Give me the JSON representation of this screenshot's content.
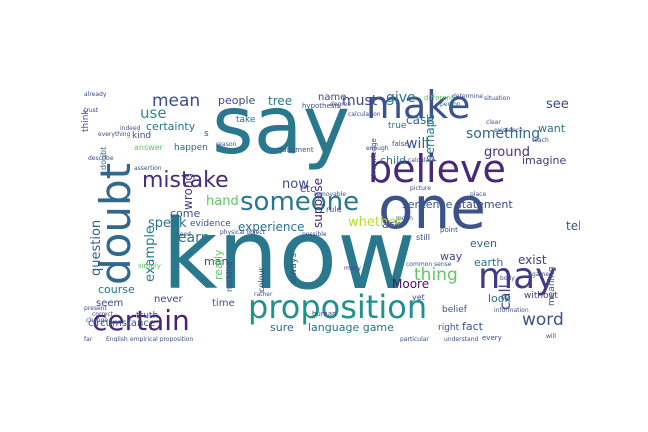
{
  "words": [
    {
      "t": "know",
      "c": "#2a788e"
    },
    {
      "t": "say",
      "c": "#2a788e"
    },
    {
      "t": "one",
      "c": "#3b528b"
    },
    {
      "t": "make",
      "c": "#3b528b"
    },
    {
      "t": "believe",
      "c": "#482878"
    },
    {
      "t": "doubt",
      "c": "#31688e"
    },
    {
      "t": "proposition",
      "c": "#21918c"
    },
    {
      "t": "may",
      "c": "#443983"
    },
    {
      "t": "certain",
      "c": "#482475"
    },
    {
      "t": "mistake",
      "c": "#472d7b"
    },
    {
      "t": "someone",
      "c": "#2a788e"
    },
    {
      "t": "something",
      "c": "#31688e"
    },
    {
      "t": "question",
      "c": "#355f8d"
    },
    {
      "t": "mean",
      "c": "#3e4a89"
    },
    {
      "t": "hand",
      "c": "#5ec962"
    },
    {
      "t": "now",
      "c": "#3e4989"
    },
    {
      "t": "word",
      "c": "#3b528b"
    },
    {
      "t": "example",
      "c": "#287d8e"
    },
    {
      "t": "thing",
      "c": "#5ec962"
    },
    {
      "t": "must",
      "c": "#414487"
    },
    {
      "t": "give",
      "c": "#2a788e"
    },
    {
      "t": "see",
      "c": "#3f4788"
    },
    {
      "t": "will",
      "c": "#3b528b"
    },
    {
      "t": "whether",
      "c": "#b5de2b"
    },
    {
      "t": "learn",
      "c": "#2a788e"
    },
    {
      "t": "experience",
      "c": "#2c728e"
    },
    {
      "t": "use",
      "c": "#21918c"
    },
    {
      "t": "wrong",
      "c": "#443a83"
    },
    {
      "t": "speak",
      "c": "#2c728e"
    },
    {
      "t": "call",
      "c": "#3e4989"
    },
    {
      "t": "case",
      "c": "#31688e"
    },
    {
      "t": "ground",
      "c": "#46327e"
    },
    {
      "t": "perhaps",
      "c": "#2a788e"
    },
    {
      "t": "certainty",
      "c": "#2c728e"
    },
    {
      "t": "people",
      "c": "#3f4788"
    },
    {
      "t": "tree",
      "c": "#287c8e"
    },
    {
      "t": "name",
      "c": "#3e4a89"
    },
    {
      "t": "suppose",
      "c": "#482576"
    },
    {
      "t": "come",
      "c": "#3b528b"
    },
    {
      "t": "course",
      "c": "#2c728e"
    },
    {
      "t": "man",
      "c": "#3e4989"
    },
    {
      "t": "really",
      "c": "#5ec962"
    },
    {
      "t": "ask",
      "c": "#3b528b"
    },
    {
      "t": "Moore",
      "c": "#471365"
    },
    {
      "t": "way",
      "c": "#3e4989"
    },
    {
      "t": "even",
      "c": "#31688e"
    },
    {
      "t": "exist",
      "c": "#443983"
    },
    {
      "t": "earth",
      "c": "#2c728e"
    },
    {
      "t": "tell",
      "c": "#3b528b"
    },
    {
      "t": "imagine",
      "c": "#46337e"
    },
    {
      "t": "sentence",
      "c": "#3b528b"
    },
    {
      "t": "statement",
      "c": "#3f4788"
    },
    {
      "t": "want",
      "c": "#2c728e"
    },
    {
      "t": "child",
      "c": "#2a788e"
    },
    {
      "t": "etc",
      "c": "#443983"
    },
    {
      "t": "look",
      "c": "#2c728e"
    },
    {
      "t": "fact",
      "c": "#3b528b"
    },
    {
      "t": "language game",
      "c": "#2c728e"
    },
    {
      "t": "sure",
      "c": "#31688e"
    },
    {
      "t": "time",
      "c": "#3b528b"
    },
    {
      "t": "never",
      "c": "#3e4a89"
    },
    {
      "t": "seem",
      "c": "#3f4788"
    },
    {
      "t": "circumstance",
      "c": "#3b528b"
    },
    {
      "t": "truth",
      "c": "#3e4989"
    },
    {
      "t": "belief",
      "c": "#3b528b"
    },
    {
      "t": "without",
      "c": "#443983"
    },
    {
      "t": "meaning",
      "c": "#3b528b"
    },
    {
      "t": "kind",
      "c": "#3e4a89"
    },
    {
      "t": "take",
      "c": "#2c728e"
    },
    {
      "t": "happen",
      "c": "#31688e"
    },
    {
      "t": "think",
      "c": "#3f4788"
    },
    {
      "t": "answer",
      "c": "#5ec962"
    },
    {
      "t": "evidence",
      "c": "#3b528b"
    },
    {
      "t": "colour",
      "c": "#3e4989"
    },
    {
      "t": "always",
      "c": "#3e4a89"
    },
    {
      "t": "nothing",
      "c": "#3e4a89"
    },
    {
      "t": "true",
      "c": "#2c728e"
    },
    {
      "t": "rule",
      "c": "#3b528b"
    },
    {
      "t": "right",
      "c": "#3b528b"
    },
    {
      "t": "doubt",
      "c": "#31688e"
    },
    {
      "t": "s",
      "c": "#3b528b"
    },
    {
      "t": "still",
      "c": "#3e4989"
    },
    {
      "t": "every",
      "c": "#3e4989"
    },
    {
      "t": "judgment",
      "c": "#3b528b"
    },
    {
      "t": "knowledge",
      "c": "#3e4a89"
    },
    {
      "t": "false",
      "c": "#3e4989"
    },
    {
      "t": "point",
      "c": "#3f4788"
    },
    {
      "t": "yet",
      "c": "#3e4a89"
    },
    {
      "t": "different",
      "c": "#5ec962"
    },
    {
      "t": "human",
      "c": "#3e4989"
    },
    {
      "t": "hypothesis",
      "c": "#3b528b"
    },
    {
      "t": "physical object",
      "c": "#3e4a89"
    },
    {
      "t": "already",
      "c": "#3e4a89"
    },
    {
      "t": "trust",
      "c": "#3e4989"
    },
    {
      "t": "moon",
      "c": "#3b528b"
    },
    {
      "t": "person",
      "c": "#2c728e"
    },
    {
      "t": "existence",
      "c": "#3e4989"
    },
    {
      "t": "teach",
      "c": "#3e4a89"
    },
    {
      "t": "body",
      "c": "#3b528b"
    },
    {
      "t": "simply",
      "c": "#5ec962"
    },
    {
      "t": "reason",
      "c": "#3e4a89"
    },
    {
      "t": "place",
      "c": "#3e4989"
    },
    {
      "t": "need",
      "c": "#3b528b"
    },
    {
      "t": "everything",
      "c": "#3e4a89"
    },
    {
      "t": "indeed",
      "c": "#3b528b"
    },
    {
      "t": "enough",
      "c": "#3e4989"
    },
    {
      "t": "calculation",
      "c": "#3e4a89"
    },
    {
      "t": "understand",
      "c": "#3b528b"
    },
    {
      "t": "particular",
      "c": "#3e4989"
    },
    {
      "t": "empirical proposition",
      "c": "#3b528b"
    },
    {
      "t": "English",
      "c": "#3e4a89"
    },
    {
      "t": "far",
      "c": "#3b528b"
    },
    {
      "t": "calculate",
      "c": "#3e4989"
    },
    {
      "t": "situation",
      "c": "#3e4a89"
    },
    {
      "t": "information",
      "c": "#3b528b"
    },
    {
      "t": "game",
      "c": "#3e4989"
    },
    {
      "t": "will",
      "c": "#3e4a89"
    },
    {
      "t": "rather",
      "c": "#3b528b"
    },
    {
      "t": "correct",
      "c": "#3e4989"
    },
    {
      "t": "change",
      "c": "#3e4a89"
    },
    {
      "t": "assertion",
      "c": "#3b528b"
    },
    {
      "t": "describe",
      "c": "#3e4989"
    },
    {
      "t": "picture",
      "c": "#3e4a89"
    },
    {
      "t": "common sense",
      "c": "#3b528b"
    },
    {
      "t": "present",
      "c": "#3e4989"
    },
    {
      "t": "possible",
      "c": "#3e4a89"
    },
    {
      "t": "removable",
      "c": "#3b528b"
    },
    {
      "t": "many",
      "c": "#3e4989"
    },
    {
      "t": "memory",
      "c": "#3e4a89"
    },
    {
      "t": "clear",
      "c": "#3b528b"
    },
    {
      "t": "degree",
      "c": "#3e4989"
    },
    {
      "t": "determine",
      "c": "#3e4a89"
    }
  ]
}
